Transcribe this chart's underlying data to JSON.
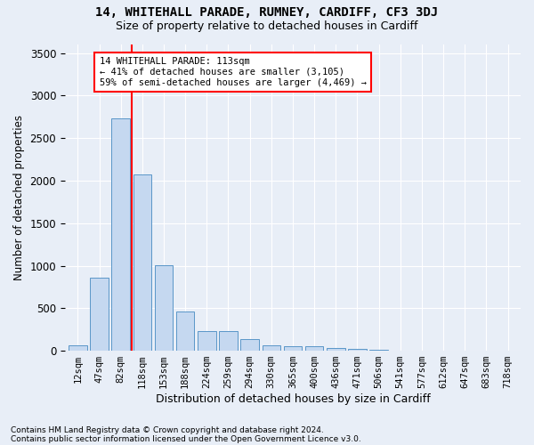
{
  "title1": "14, WHITEHALL PARADE, RUMNEY, CARDIFF, CF3 3DJ",
  "title2": "Size of property relative to detached houses in Cardiff",
  "xlabel": "Distribution of detached houses by size in Cardiff",
  "ylabel": "Number of detached properties",
  "categories": [
    "12sqm",
    "47sqm",
    "82sqm",
    "118sqm",
    "153sqm",
    "188sqm",
    "224sqm",
    "259sqm",
    "294sqm",
    "330sqm",
    "365sqm",
    "400sqm",
    "436sqm",
    "471sqm",
    "506sqm",
    "541sqm",
    "577sqm",
    "612sqm",
    "647sqm",
    "683sqm",
    "718sqm"
  ],
  "values": [
    65,
    855,
    2730,
    2070,
    1010,
    460,
    230,
    230,
    140,
    65,
    55,
    55,
    35,
    25,
    10,
    0,
    0,
    0,
    0,
    0,
    0
  ],
  "bar_color": "#c5d8f0",
  "bar_edge_color": "#5a96c8",
  "vline_color": "red",
  "annotation_text": "14 WHITEHALL PARADE: 113sqm\n← 41% of detached houses are smaller (3,105)\n59% of semi-detached houses are larger (4,469) →",
  "annotation_box_color": "white",
  "annotation_box_edge_color": "red",
  "ylim": [
    0,
    3600
  ],
  "background_color": "#e8eef7",
  "footnote1": "Contains HM Land Registry data © Crown copyright and database right 2024.",
  "footnote2": "Contains public sector information licensed under the Open Government Licence v3.0."
}
